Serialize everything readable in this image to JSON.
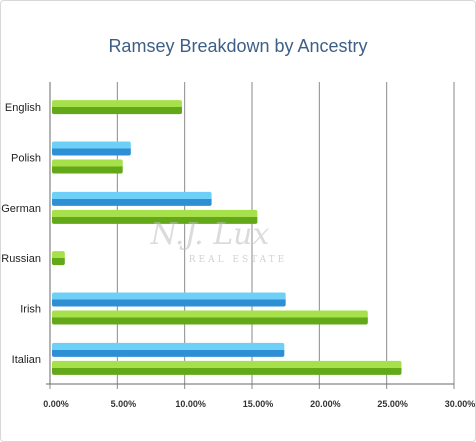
{
  "chart_data": {
    "type": "bar",
    "orientation": "horizontal",
    "title": "Ramsey Breakdown by Ancestry",
    "categories": [
      "English",
      "Polish",
      "German",
      "Russian",
      "Irish",
      "Italian"
    ],
    "series": [
      {
        "color": "#3aa8e4",
        "values": [
          null,
          6.0,
          12.0,
          null,
          17.5,
          17.4
        ]
      },
      {
        "color": "#7cc22a",
        "values": [
          9.8,
          5.4,
          15.4,
          1.1,
          23.6,
          26.1
        ]
      }
    ],
    "xlim": [
      0,
      30
    ],
    "xticks": [
      "0.00%",
      "5.00%",
      "10.00%",
      "15.00%",
      "20.00%",
      "25.00%",
      "30.00%"
    ],
    "grid": true,
    "legend": "none"
  },
  "watermark": {
    "line1": "N.J. Lux",
    "line2": "REAL ESTATE"
  }
}
